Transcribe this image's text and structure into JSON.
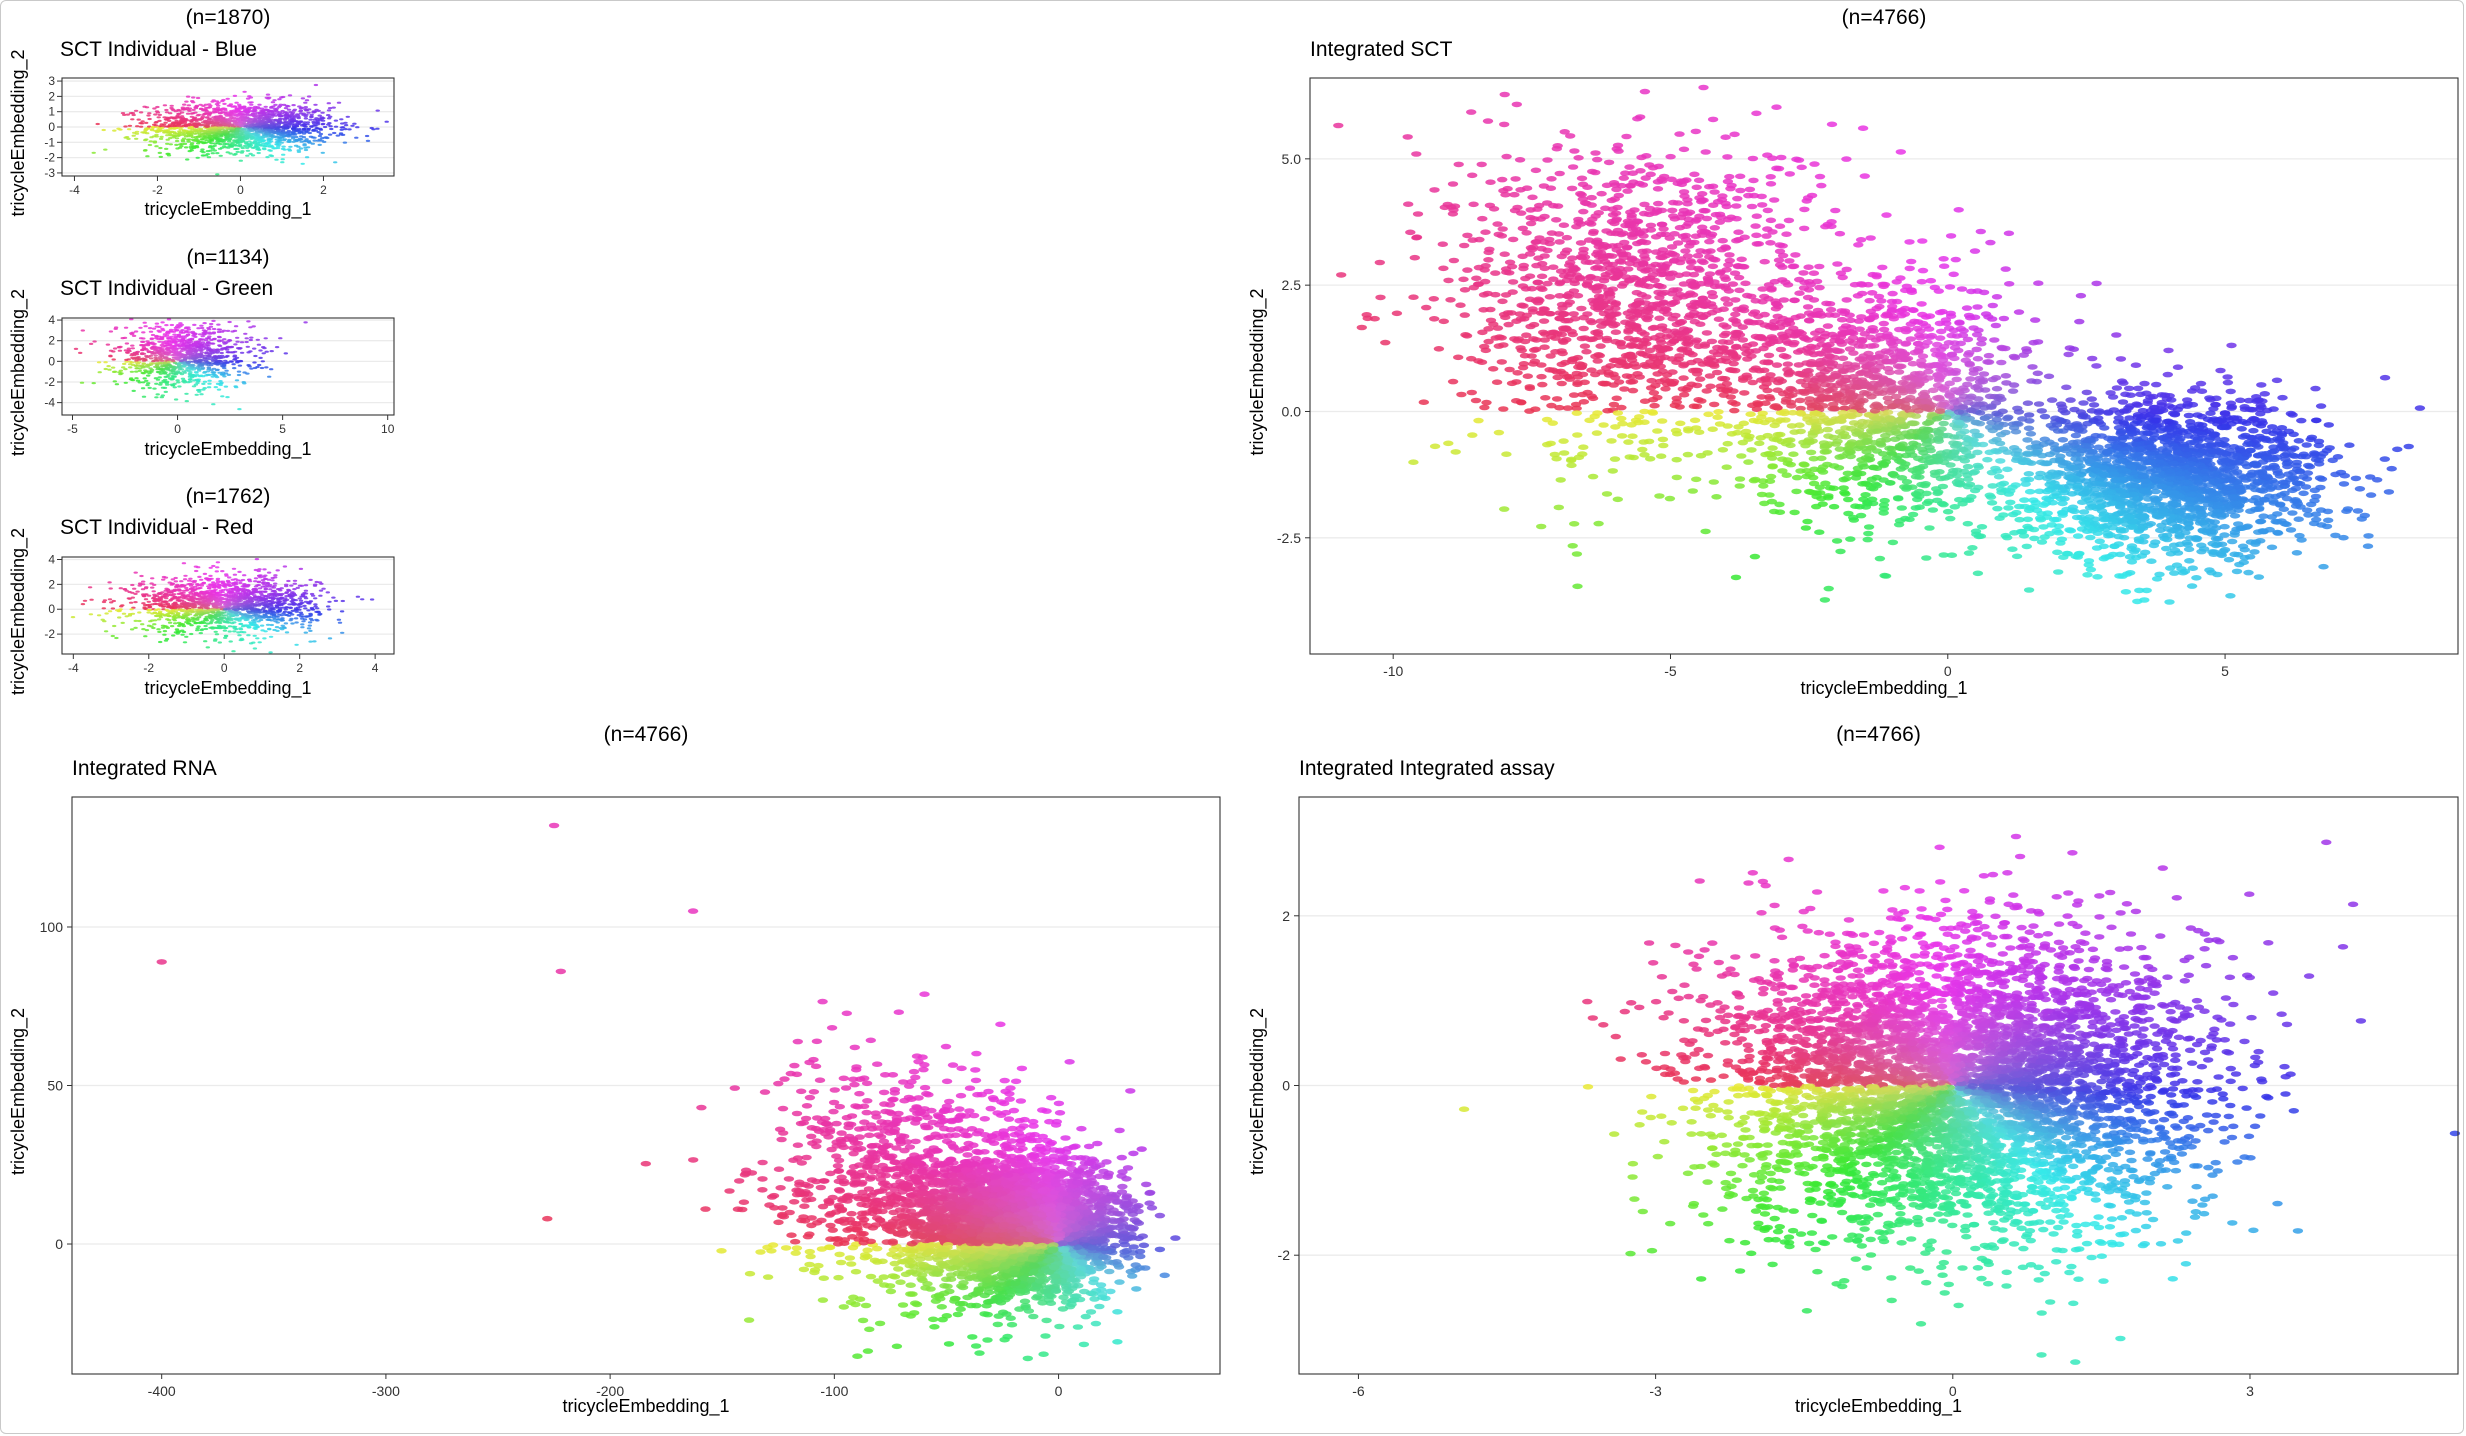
{
  "chart_data": [
    {
      "type": "scatter",
      "count_label": "(n=1870)",
      "title": "SCT Individual - Blue",
      "xlabel": "tricycleEmbedding_1",
      "ylabel": "tricycleEmbedding_2",
      "xlim": [
        -4.3,
        3.7
      ],
      "ylim": [
        -3.2,
        3.2
      ],
      "xticks": [
        -4,
        -2,
        0,
        2
      ],
      "yticks": [
        -3,
        -2,
        -1,
        0,
        1,
        2,
        3
      ],
      "grid": true,
      "color_encoding": "hue by angle around origin",
      "points": {
        "n": 1870,
        "center": [
          0,
          0
        ],
        "spread": [
          1.1,
          0.8
        ]
      }
    },
    {
      "type": "scatter",
      "count_label": "(n=1134)",
      "title": "SCT Individual - Green",
      "xlabel": "tricycleEmbedding_1",
      "ylabel": "tricycleEmbedding_2",
      "xlim": [
        -5.5,
        10.3
      ],
      "ylim": [
        -5.2,
        4.2
      ],
      "xticks": [
        -5,
        0,
        5,
        10
      ],
      "yticks": [
        -4,
        -2,
        0,
        2,
        4
      ],
      "grid": true,
      "color_encoding": "hue by angle around origin",
      "points": {
        "n": 1134,
        "center": [
          0.3,
          0.5
        ],
        "spread": [
          1.6,
          1.5
        ]
      }
    },
    {
      "type": "scatter",
      "count_label": "(n=1762)",
      "title": "SCT Individual - Red",
      "xlabel": "tricycleEmbedding_1",
      "ylabel": "tricycleEmbedding_2",
      "xlim": [
        -4.3,
        4.5
      ],
      "ylim": [
        -3.6,
        4.2
      ],
      "xticks": [
        -4,
        -2,
        0,
        2,
        4
      ],
      "yticks": [
        -2,
        0,
        2,
        4
      ],
      "grid": true,
      "color_encoding": "hue by angle around origin",
      "points": {
        "n": 1762,
        "center": [
          0,
          0.4
        ],
        "spread": [
          1.2,
          1.1
        ]
      }
    },
    {
      "type": "scatter",
      "count_label": "(n=4766)",
      "title": "Integrated SCT",
      "xlabel": "tricycleEmbedding_1",
      "ylabel": "tricycleEmbedding_2",
      "xlim": [
        -11.5,
        9.2
      ],
      "ylim": [
        -4.8,
        6.6
      ],
      "xticks": [
        -10,
        -5,
        0,
        5
      ],
      "yticks": [
        -2.5,
        0.0,
        2.5,
        5.0
      ],
      "ytick_labels": [
        "-2.5",
        "0.0",
        "2.5",
        "5.0"
      ],
      "grid": true,
      "color_encoding": "hue by angle around origin",
      "points": {
        "n": 4766,
        "clusters": [
          {
            "center": [
              -5.5,
              2.2
            ],
            "spread": [
              1.7,
              1.6
            ],
            "n": 1500
          },
          {
            "center": [
              -1.0,
              0.2
            ],
            "spread": [
              1.3,
              1.2
            ],
            "n": 1400
          },
          {
            "center": [
              4.0,
              -1.3
            ],
            "spread": [
              1.4,
              0.8
            ],
            "n": 1866
          }
        ]
      }
    },
    {
      "type": "scatter",
      "count_label": "(n=4766)",
      "title": "Integrated RNA",
      "xlabel": "tricycleEmbedding_1",
      "ylabel": "tricycleEmbedding_2",
      "xlim": [
        -440,
        72
      ],
      "ylim": [
        -41,
        141
      ],
      "xticks": [
        -400,
        -300,
        -200,
        -100,
        0
      ],
      "yticks": [
        0,
        50,
        100
      ],
      "grid": true,
      "color_encoding": "hue by angle around origin",
      "points": {
        "n": 4766,
        "clusters": [
          {
            "center": [
              -15,
              5
            ],
            "spread": [
              20,
              10
            ],
            "n": 3600
          },
          {
            "center": [
              -60,
              18
            ],
            "spread": [
              35,
              18
            ],
            "n": 1166
          }
        ],
        "outliers": [
          [
            -400,
            89
          ],
          [
            -225,
            132
          ],
          [
            -228,
            8
          ],
          [
            -222,
            86
          ],
          [
            -163,
            105
          ],
          [
            -138,
            -24
          ]
        ]
      }
    },
    {
      "type": "scatter",
      "count_label": "(n=4766)",
      "title": "Integrated Integrated assay",
      "xlabel": "tricycleEmbedding_1",
      "ylabel": "tricycleEmbedding_2",
      "xlim": [
        -6.6,
        5.1
      ],
      "ylim": [
        -3.4,
        3.4
      ],
      "xticks": [
        -6,
        -3,
        0,
        3
      ],
      "yticks": [
        -2,
        0,
        2
      ],
      "grid": true,
      "color_encoding": "hue by angle around origin",
      "points": {
        "n": 4766,
        "center": [
          0,
          0
        ],
        "spread": [
          1.2,
          0.9
        ]
      }
    }
  ]
}
